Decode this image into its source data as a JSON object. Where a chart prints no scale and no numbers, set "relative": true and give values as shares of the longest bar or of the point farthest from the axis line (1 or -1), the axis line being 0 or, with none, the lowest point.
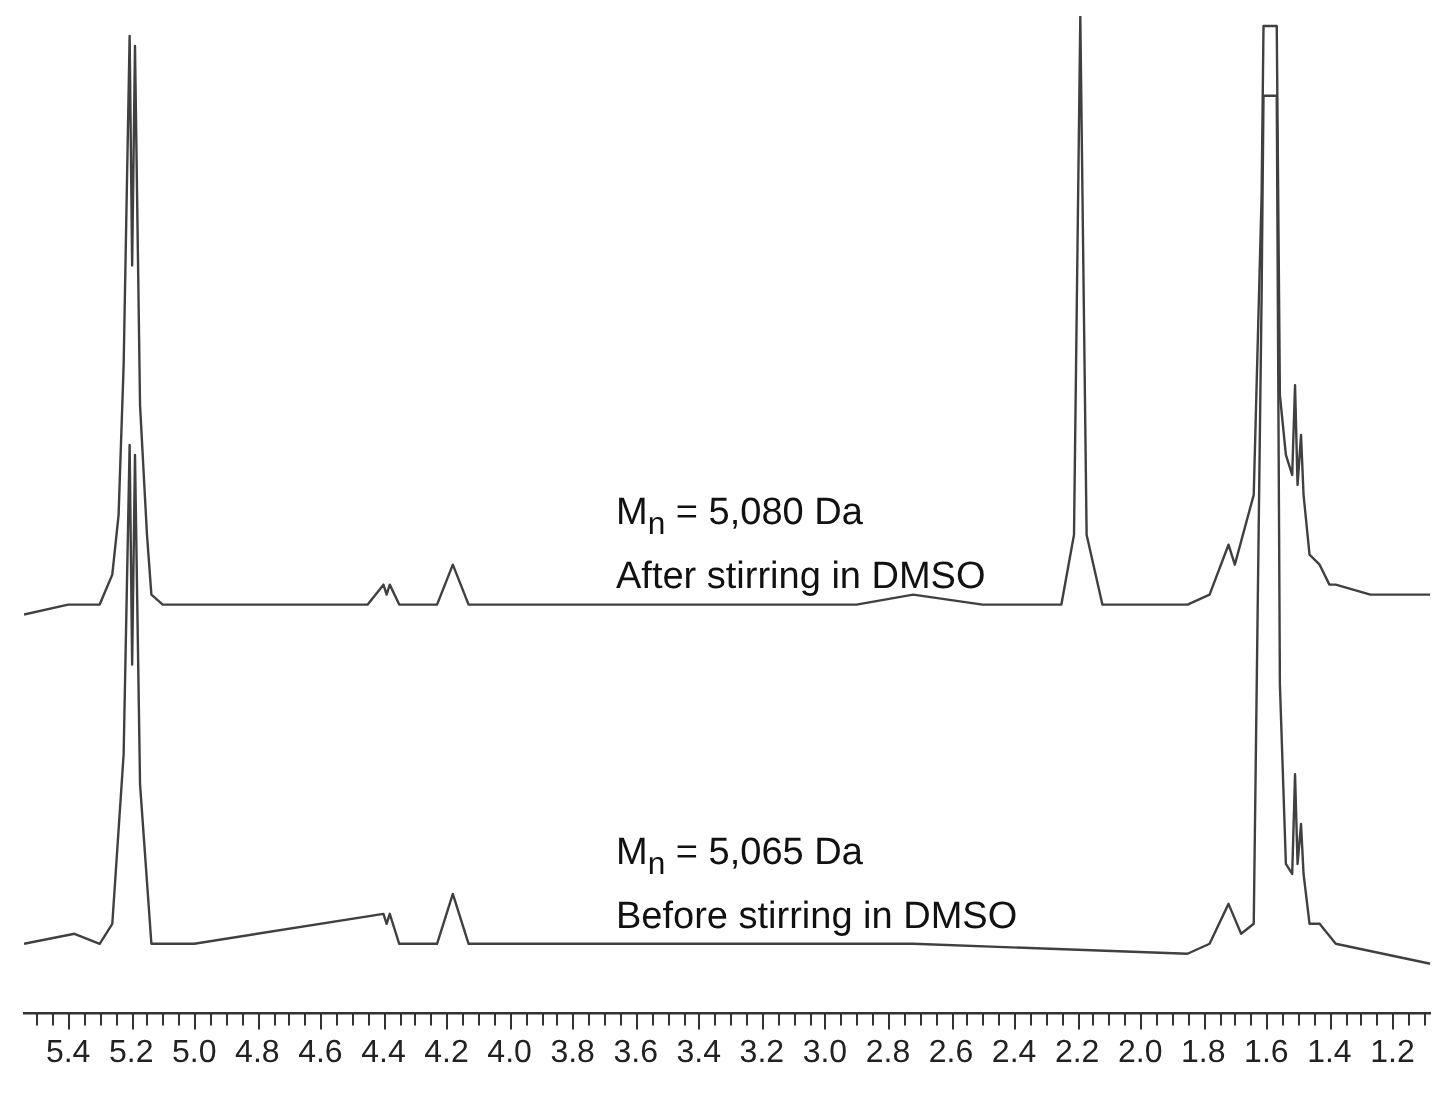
{
  "chart_data": {
    "type": "line",
    "relative": true,
    "marker": "none",
    "line_style": "solid",
    "grid": false,
    "legend": false,
    "tick_labels": "x",
    "xlim": [
      5.54,
      1.08
    ],
    "xticks": [
      {
        "value": 5.5,
        "label": null
      },
      {
        "value": 5.45,
        "label": null
      },
      5.4,
      {
        "value": 5.35,
        "label": null
      },
      {
        "value": 5.3,
        "label": null
      },
      {
        "value": 5.25,
        "label": null
      },
      5.2,
      {
        "value": 5.15,
        "label": null
      },
      {
        "value": 5.1,
        "label": null
      },
      {
        "value": 5.05,
        "label": null
      },
      {
        "value": 5,
        "label": "5.0"
      },
      {
        "value": 4.95,
        "label": null
      },
      {
        "value": 4.9,
        "label": null
      },
      {
        "value": 4.85,
        "label": null
      },
      4.8,
      {
        "value": 4.75,
        "label": null
      },
      {
        "value": 4.7,
        "label": null
      },
      {
        "value": 4.65,
        "label": null
      },
      4.6,
      {
        "value": 4.55,
        "label": null
      },
      {
        "value": 4.5,
        "label": null
      },
      {
        "value": 4.45,
        "label": null
      },
      4.4,
      {
        "value": 4.35,
        "label": null
      },
      {
        "value": 4.3,
        "label": null
      },
      {
        "value": 4.25,
        "label": null
      },
      4.2,
      {
        "value": 4.15,
        "label": null
      },
      {
        "value": 4.1,
        "label": null
      },
      {
        "value": 4.05,
        "label": null
      },
      {
        "value": 4,
        "label": "4.0"
      },
      {
        "value": 3.95,
        "label": null
      },
      {
        "value": 3.9,
        "label": null
      },
      {
        "value": 3.85,
        "label": null
      },
      3.8,
      {
        "value": 3.75,
        "label": null
      },
      {
        "value": 3.7,
        "label": null
      },
      {
        "value": 3.65,
        "label": null
      },
      3.6,
      {
        "value": 3.55,
        "label": null
      },
      {
        "value": 3.5,
        "label": null
      },
      {
        "value": 3.45,
        "label": null
      },
      3.4,
      {
        "value": 3.35,
        "label": null
      },
      {
        "value": 3.3,
        "label": null
      },
      {
        "value": 3.25,
        "label": null
      },
      3.2,
      {
        "value": 3.15,
        "label": null
      },
      {
        "value": 3.1,
        "label": null
      },
      {
        "value": 3.05,
        "label": null
      },
      {
        "value": 3,
        "label": "3.0"
      },
      {
        "value": 2.95,
        "label": null
      },
      {
        "value": 2.9,
        "label": null
      },
      {
        "value": 2.85,
        "label": null
      },
      2.8,
      {
        "value": 2.75,
        "label": null
      },
      {
        "value": 2.7,
        "label": null
      },
      {
        "value": 2.65,
        "label": null
      },
      2.6,
      {
        "value": 2.55,
        "label": null
      },
      {
        "value": 2.5,
        "label": null
      },
      {
        "value": 2.45,
        "label": null
      },
      2.4,
      {
        "value": 2.35,
        "label": null
      },
      {
        "value": 2.3,
        "label": null
      },
      {
        "value": 2.25,
        "label": null
      },
      2.2,
      {
        "value": 2.15,
        "label": null
      },
      {
        "value": 2.1,
        "label": null
      },
      {
        "value": 2.05,
        "label": null
      },
      {
        "value": 2,
        "label": "2.0"
      },
      {
        "value": 1.95,
        "label": null
      },
      {
        "value": 1.9,
        "label": null
      },
      {
        "value": 1.85,
        "label": null
      },
      1.8,
      {
        "value": 1.75,
        "label": null
      },
      {
        "value": 1.7,
        "label": null
      },
      {
        "value": 1.65,
        "label": null
      },
      1.6,
      {
        "value": 1.55,
        "label": null
      },
      {
        "value": 1.5,
        "label": null
      },
      {
        "value": 1.45,
        "label": null
      },
      1.4,
      {
        "value": 1.35,
        "label": null
      },
      {
        "value": 1.3,
        "label": null
      },
      {
        "value": 1.25,
        "label": null
      },
      1.2,
      {
        "value": 1.15,
        "label": null
      },
      {
        "value": 1.1,
        "label": null
      }
    ],
    "series": [
      {
        "color": "#404040",
        "x": [
          5.54,
          5.4,
          5.38,
          5.36,
          5.3,
          5.26,
          5.24,
          5.224,
          5.205,
          5.197,
          5.188,
          5.172,
          5.15,
          5.136,
          5.1,
          5.0,
          4.7,
          4.45,
          4.4,
          4.39,
          4.38,
          4.35,
          4.23,
          4.18,
          4.13,
          3.5,
          2.9,
          2.72,
          2.5,
          2.25,
          2.21,
          2.19,
          2.17,
          2.12,
          1.85,
          1.78,
          1.72,
          1.7,
          1.64,
          1.615,
          1.609,
          1.567,
          1.557,
          1.538,
          1.518,
          1.509,
          1.501,
          1.49,
          1.482,
          1.463,
          1.431,
          1.4,
          1.38,
          1.27,
          1.08
        ],
        "values": [
          0.4,
          0.41,
          0.41,
          0.41,
          0.41,
          0.44,
          0.5,
          0.65,
          0.98,
          0.75,
          0.97,
          0.61,
          0.48,
          0.42,
          0.41,
          0.41,
          0.41,
          0.41,
          0.43,
          0.42,
          0.43,
          0.41,
          0.41,
          0.45,
          0.41,
          0.41,
          0.41,
          0.42,
          0.41,
          0.41,
          0.48,
          1.0,
          0.48,
          0.41,
          0.41,
          0.42,
          0.47,
          0.45,
          0.52,
          0.82,
          0.99,
          0.99,
          0.62,
          0.56,
          0.54,
          0.63,
          0.53,
          0.58,
          0.52,
          0.46,
          0.45,
          0.43,
          0.43,
          0.42,
          0.42
        ]
      },
      {
        "color": "#404040",
        "x": [
          5.54,
          5.38,
          5.3,
          5.26,
          5.224,
          5.205,
          5.197,
          5.188,
          5.172,
          5.136,
          5.0,
          4.4,
          4.39,
          4.38,
          4.35,
          4.23,
          4.18,
          4.13,
          2.72,
          1.85,
          1.78,
          1.72,
          1.68,
          1.64,
          1.615,
          1.609,
          1.567,
          1.557,
          1.538,
          1.518,
          1.509,
          1.501,
          1.49,
          1.482,
          1.463,
          1.431,
          1.38,
          1.08
        ],
        "values": [
          0.07,
          0.08,
          0.07,
          0.09,
          0.26,
          0.57,
          0.35,
          0.56,
          0.23,
          0.07,
          0.07,
          0.1,
          0.09,
          0.1,
          0.07,
          0.07,
          0.12,
          0.07,
          0.07,
          0.06,
          0.07,
          0.11,
          0.08,
          0.09,
          0.72,
          0.92,
          0.92,
          0.33,
          0.15,
          0.14,
          0.24,
          0.15,
          0.19,
          0.14,
          0.09,
          0.09,
          0.07,
          0.05
        ]
      }
    ],
    "annotations": [
      "M$_{n}$ = 5,080 Da",
      "After stirring in DMSO",
      "M$_{n}$ = 5,065 Da",
      "Before stirring in DMSO"
    ]
  }
}
